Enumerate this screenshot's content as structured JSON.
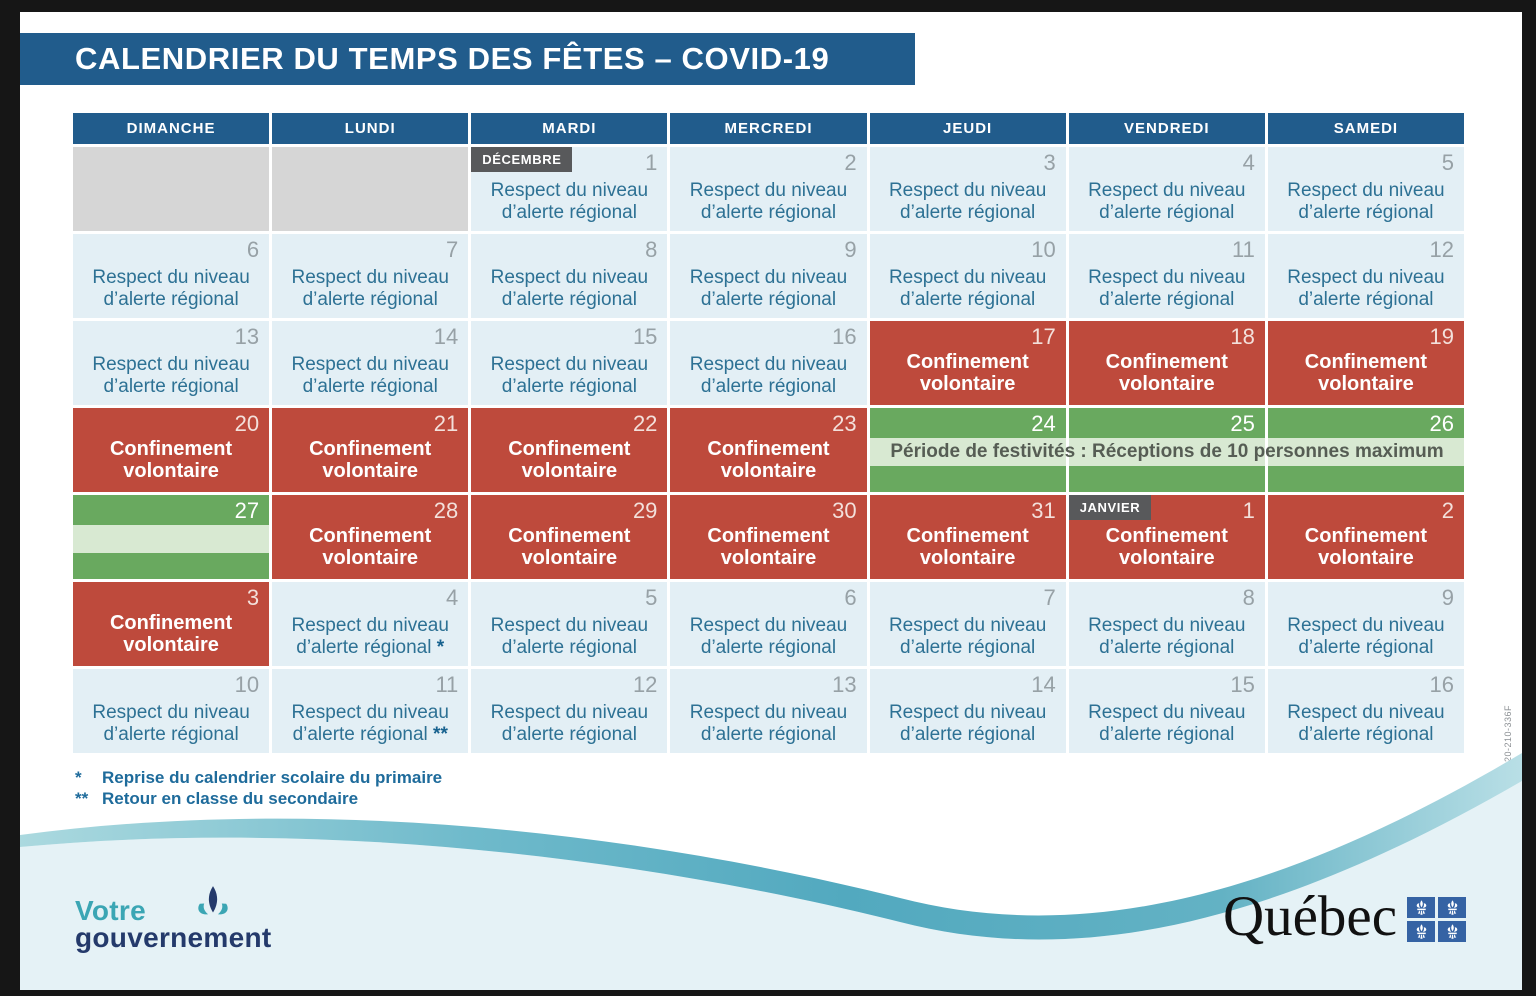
{
  "title": "CALENDRIER DU TEMPS DES FÊTES – COVID-19",
  "weekdays": [
    "DIMANCHE",
    "LUNDI",
    "MARDI",
    "MERCREDI",
    "JEUDI",
    "VENDREDI",
    "SAMEDI"
  ],
  "labels": {
    "regular": "Respect du niveau d’alerte régional",
    "confinement": "Confinement volontaire",
    "festive": "Période de festivités : Réceptions de 10 personnes maximum"
  },
  "badges": {
    "december": "DÉCEMBRE",
    "january": "JANVIER"
  },
  "weeks": [
    [
      {
        "type": "empty"
      },
      {
        "type": "empty"
      },
      {
        "day": "1",
        "type": "regular",
        "badge": "december"
      },
      {
        "day": "2",
        "type": "regular"
      },
      {
        "day": "3",
        "type": "regular"
      },
      {
        "day": "4",
        "type": "regular"
      },
      {
        "day": "5",
        "type": "regular"
      }
    ],
    [
      {
        "day": "6",
        "type": "regular"
      },
      {
        "day": "7",
        "type": "regular"
      },
      {
        "day": "8",
        "type": "regular"
      },
      {
        "day": "9",
        "type": "regular"
      },
      {
        "day": "10",
        "type": "regular"
      },
      {
        "day": "11",
        "type": "regular"
      },
      {
        "day": "12",
        "type": "regular"
      }
    ],
    [
      {
        "day": "13",
        "type": "regular"
      },
      {
        "day": "14",
        "type": "regular"
      },
      {
        "day": "15",
        "type": "regular"
      },
      {
        "day": "16",
        "type": "regular"
      },
      {
        "day": "17",
        "type": "confinement"
      },
      {
        "day": "18",
        "type": "confinement"
      },
      {
        "day": "19",
        "type": "confinement"
      }
    ],
    [
      {
        "day": "20",
        "type": "confinement"
      },
      {
        "day": "21",
        "type": "confinement"
      },
      {
        "day": "22",
        "type": "confinement"
      },
      {
        "day": "23",
        "type": "confinement"
      },
      {
        "day": "24",
        "type": "festive"
      },
      {
        "day": "25",
        "type": "festive"
      },
      {
        "day": "26",
        "type": "festive"
      }
    ],
    [
      {
        "day": "27",
        "type": "festive"
      },
      {
        "day": "28",
        "type": "confinement"
      },
      {
        "day": "29",
        "type": "confinement"
      },
      {
        "day": "30",
        "type": "confinement"
      },
      {
        "day": "31",
        "type": "confinement"
      },
      {
        "day": "1",
        "type": "confinement",
        "badge": "january"
      },
      {
        "day": "2",
        "type": "confinement"
      }
    ],
    [
      {
        "day": "3",
        "type": "confinement"
      },
      {
        "day": "4",
        "type": "regular",
        "suffix": "*"
      },
      {
        "day": "5",
        "type": "regular"
      },
      {
        "day": "6",
        "type": "regular"
      },
      {
        "day": "7",
        "type": "regular"
      },
      {
        "day": "8",
        "type": "regular"
      },
      {
        "day": "9",
        "type": "regular"
      }
    ],
    [
      {
        "day": "10",
        "type": "regular"
      },
      {
        "day": "11",
        "type": "regular",
        "suffix": "**"
      },
      {
        "day": "12",
        "type": "regular"
      },
      {
        "day": "13",
        "type": "regular"
      },
      {
        "day": "14",
        "type": "regular"
      },
      {
        "day": "15",
        "type": "regular"
      },
      {
        "day": "16",
        "type": "regular"
      }
    ]
  ],
  "footnotes": [
    {
      "marker": "*",
      "text": "Reprise du calendrier scolaire du primaire"
    },
    {
      "marker": "**",
      "text": "Retour en classe du secondaire"
    }
  ],
  "doc_code": "20-210-336F",
  "footer": {
    "logo_line1": "Votre",
    "logo_line2": "gouvernement",
    "wordmark": "Québec"
  },
  "colors": {
    "header_blue": "#215C8C",
    "cell_blue": "#E3EFF5",
    "cell_text_blue": "#2D7194",
    "empty_gray": "#D6D6D6",
    "confinement_red": "#BE4A3C",
    "festive_green": "#69A95F",
    "festive_band_green": "#D8E9D2",
    "badge_gray": "#58595B",
    "wave_teal": "#57AEC3",
    "footer_light_blue": "#E5F2F6",
    "flag_blue": "#3563A4",
    "logo_teal": "#3BA6B4",
    "logo_navy": "#243A6B"
  }
}
